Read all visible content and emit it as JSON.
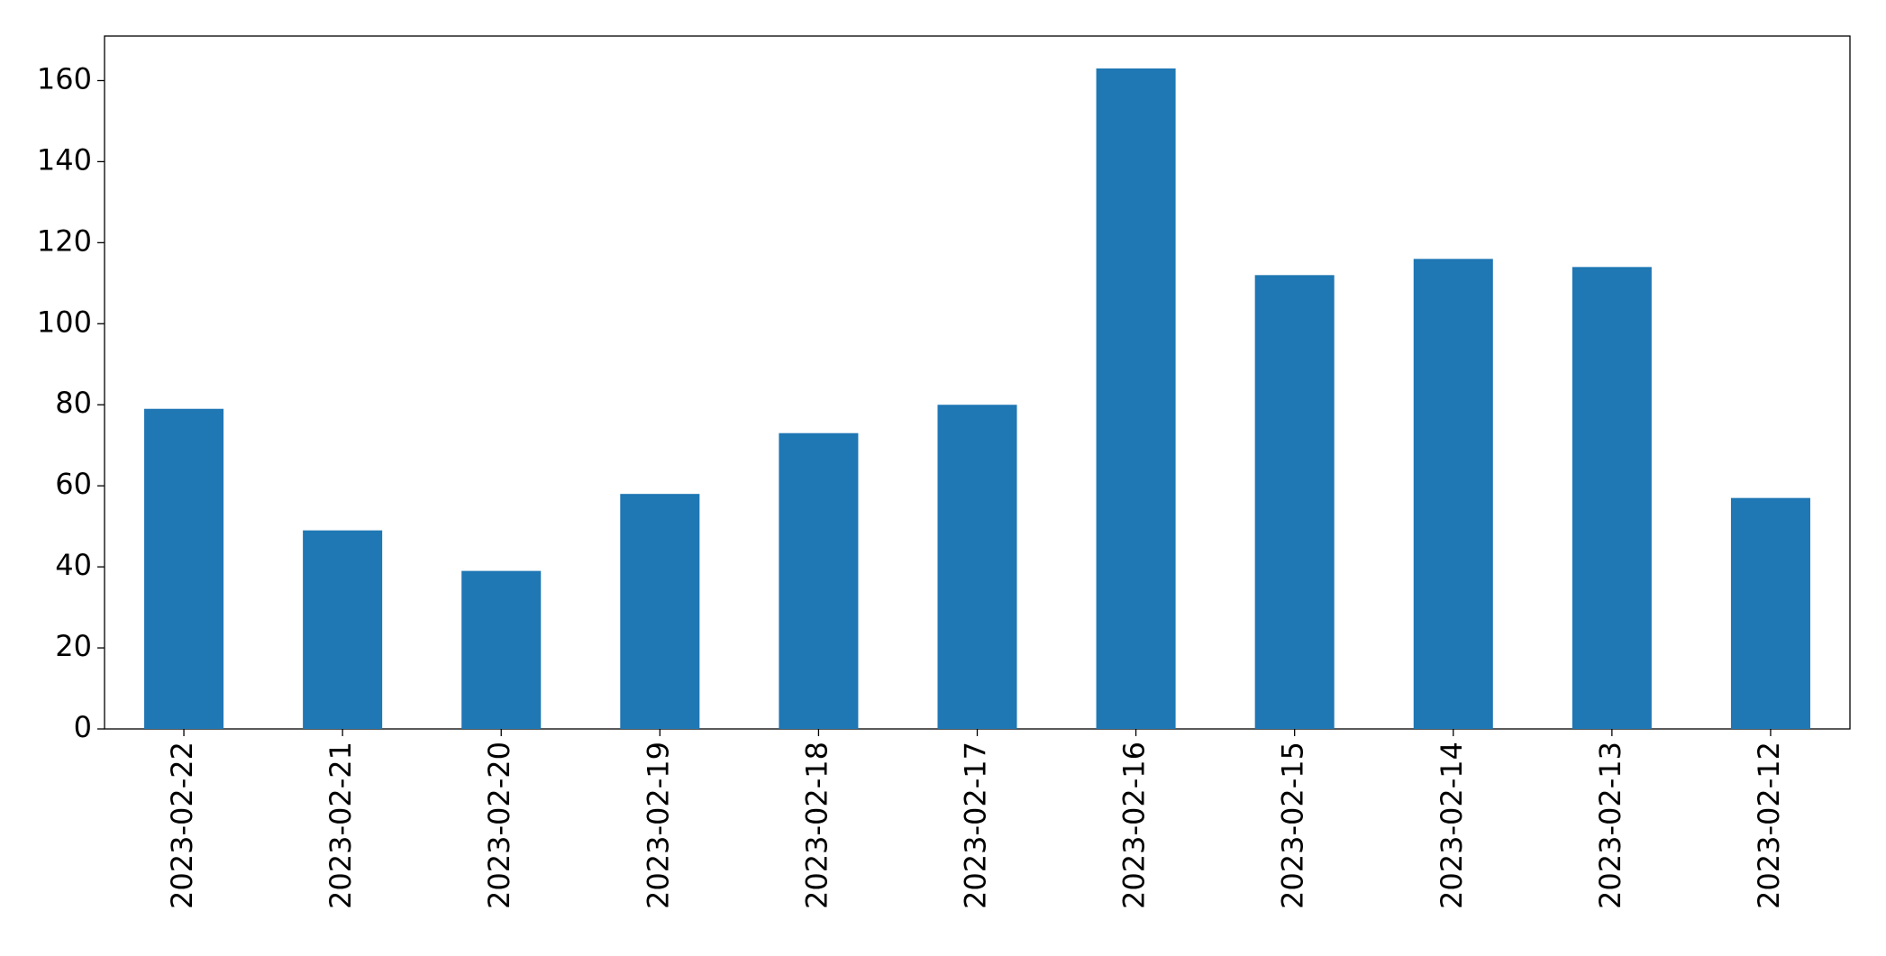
{
  "chart_data": {
    "type": "bar",
    "categories": [
      "2023-02-22",
      "2023-02-21",
      "2023-02-20",
      "2023-02-19",
      "2023-02-18",
      "2023-02-17",
      "2023-02-16",
      "2023-02-15",
      "2023-02-14",
      "2023-02-13",
      "2023-02-12"
    ],
    "values": [
      79,
      49,
      39,
      58,
      73,
      80,
      163,
      112,
      116,
      114,
      57
    ],
    "color": "#1f77b4",
    "ylim": [
      0,
      171
    ],
    "yticks": [
      0,
      20,
      40,
      60,
      80,
      100,
      120,
      140,
      160
    ],
    "grid": false
  }
}
